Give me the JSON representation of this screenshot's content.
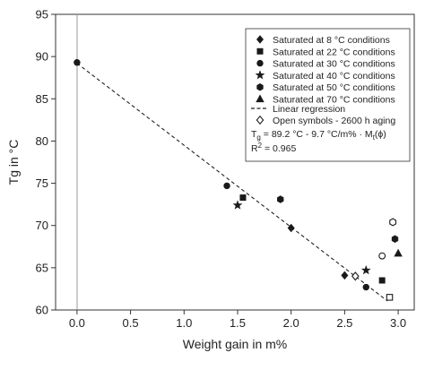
{
  "chart_data": {
    "type": "scatter",
    "xlabel": "Weight gain in m%",
    "ylabel": "Tg in °C",
    "xlim": [
      -0.2,
      3.15
    ],
    "ylim": [
      60,
      95
    ],
    "xticks": [
      "0.0",
      "0.5",
      "1.0",
      "1.5",
      "2.0",
      "2.5",
      "3.0"
    ],
    "yticks": [
      "60",
      "65",
      "70",
      "75",
      "80",
      "85",
      "90",
      "95"
    ],
    "grid": false,
    "legend_position": "top-right",
    "series": [
      {
        "name": "Saturated at 8 °C conditions",
        "marker": "diamond",
        "points": [
          [
            2.0,
            69.7
          ],
          [
            2.5,
            64.1
          ]
        ]
      },
      {
        "name": "Saturated at 22 °C conditions",
        "marker": "square",
        "points": [
          [
            1.55,
            73.3
          ],
          [
            2.85,
            63.5
          ]
        ]
      },
      {
        "name": "Saturated at 30 °C conditions",
        "marker": "circle",
        "points": [
          [
            0.0,
            89.3
          ],
          [
            1.4,
            74.7
          ],
          [
            2.7,
            62.7
          ]
        ]
      },
      {
        "name": "Saturated at 40 °C conditions",
        "marker": "star",
        "points": [
          [
            1.5,
            72.4
          ],
          [
            2.7,
            64.7
          ]
        ]
      },
      {
        "name": "Saturated at 50 °C conditions",
        "marker": "hexagon",
        "points": [
          [
            1.9,
            73.1
          ],
          [
            2.97,
            68.4
          ]
        ]
      },
      {
        "name": "Saturated at 70 °C conditions",
        "marker": "triangle",
        "points": [
          [
            3.0,
            66.7
          ]
        ]
      }
    ],
    "aging_points": [
      {
        "marker": "diamond",
        "points": [
          [
            2.6,
            64.0
          ]
        ]
      },
      {
        "marker": "square",
        "points": [
          [
            2.92,
            61.5
          ]
        ]
      },
      {
        "marker": "hexagon",
        "points": [
          [
            2.95,
            70.4
          ]
        ]
      },
      {
        "marker": "circle",
        "points": [
          [
            2.85,
            66.4
          ]
        ]
      }
    ],
    "regression": {
      "name": "Linear regression",
      "intercept": 89.2,
      "slope": -9.7,
      "x_range": [
        0.0,
        2.9
      ]
    },
    "legend_extra": [
      "Open symbols - 2600 h aging",
      "T",
      "g",
      " = 89.2 °C - 9.7 °C/m% · M",
      "t",
      "(ϕ)",
      "R",
      "2",
      " = 0.965"
    ]
  }
}
